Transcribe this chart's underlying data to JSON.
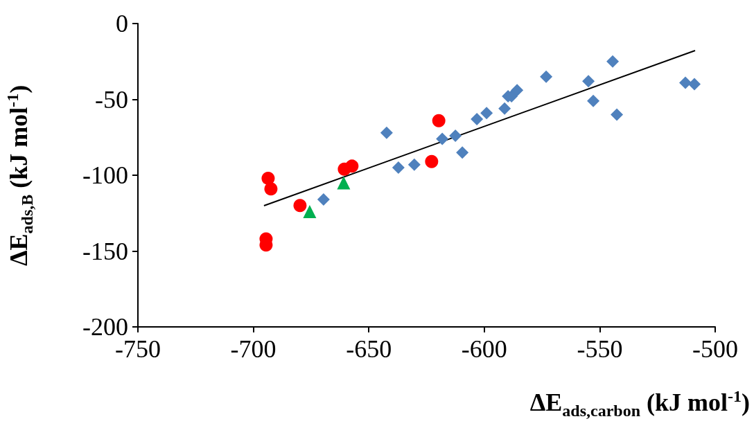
{
  "chart_data": {
    "type": "scatter",
    "xlabel": "ΔE$_{ads,carbon}$ (kJ mol$^{-1}$)",
    "ylabel": "ΔE$_{ads,B}$ (kJ mol$^{-1}$)",
    "xlim": [
      -750,
      -500
    ],
    "xticks": [
      -750,
      -700,
      -650,
      -600,
      -550,
      -500
    ],
    "ylim": [
      -200,
      0
    ],
    "yticks": [
      -200,
      -150,
      -100,
      -50,
      0
    ],
    "grid": false,
    "series": [
      {
        "color": "#4f81bd",
        "marker": "diamond",
        "x": [
          -642.3,
          -637.2,
          -630.3,
          -618.2,
          -612.5,
          -609.5,
          -603.2,
          -599.0,
          -591.2,
          -589.7,
          -588.2,
          -585.8,
          -573.2,
          -554.9,
          -552.8,
          -544.4,
          -542.6,
          -512.9,
          -509.0,
          -669.6
        ],
        "values": [
          -72,
          -95,
          -93,
          -76,
          -74,
          -85,
          -63,
          -59,
          -56,
          -48,
          -48,
          -44,
          -35,
          -38,
          -51,
          -25,
          -60,
          -39,
          -40,
          -116
        ]
      },
      {
        "color": "#ff0000",
        "marker": "circle",
        "x": [
          -693.6,
          -692.4,
          -679.8,
          -694.5,
          -694.5,
          -660.6,
          -657.3,
          -622.8,
          -619.7
        ],
        "values": [
          -102,
          -109,
          -120,
          -142,
          -146,
          -96,
          -94,
          -91,
          -64
        ]
      },
      {
        "color": "#00b050",
        "marker": "triangle",
        "x": [
          -675.6,
          -660.9
        ],
        "values": [
          -124,
          -105
        ]
      },
      {
        "type": "line",
        "color": "#000000",
        "marker": "none",
        "x": [
          -695.4,
          -508.7
        ],
        "values": [
          -120.1,
          -17.8
        ]
      }
    ]
  }
}
